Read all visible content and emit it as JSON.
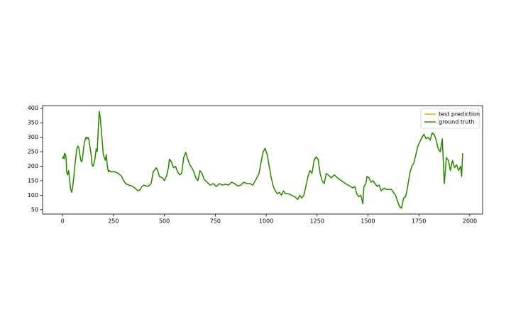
{
  "chart_data": {
    "type": "line",
    "x": [
      0,
      5,
      8,
      10,
      15,
      18,
      20,
      25,
      30,
      35,
      40,
      45,
      50,
      55,
      60,
      65,
      70,
      75,
      80,
      85,
      90,
      95,
      100,
      105,
      110,
      115,
      120,
      125,
      130,
      135,
      140,
      145,
      150,
      155,
      160,
      165,
      170,
      175,
      180,
      185,
      190,
      195,
      200,
      205,
      210,
      215,
      220,
      225,
      230,
      240,
      250,
      260,
      275,
      290,
      300,
      310,
      325,
      340,
      355,
      370,
      380,
      390,
      400,
      420,
      435,
      445,
      455,
      460,
      470,
      475,
      490,
      500,
      510,
      520,
      525,
      535,
      545,
      555,
      565,
      575,
      585,
      595,
      605,
      615,
      625,
      635,
      645,
      655,
      665,
      675,
      685,
      695,
      710,
      725,
      740,
      755,
      770,
      785,
      800,
      815,
      830,
      845,
      860,
      875,
      890,
      905,
      920,
      935,
      950,
      965,
      975,
      985,
      995,
      1005,
      1015,
      1025,
      1035,
      1045,
      1055,
      1065,
      1075,
      1085,
      1095,
      1110,
      1125,
      1140,
      1155,
      1165,
      1175,
      1185,
      1195,
      1205,
      1215,
      1225,
      1235,
      1245,
      1255,
      1265,
      1275,
      1285,
      1295,
      1305,
      1320,
      1335,
      1350,
      1370,
      1390,
      1410,
      1425,
      1435,
      1445,
      1455,
      1465,
      1475,
      1480,
      1490,
      1495,
      1505,
      1515,
      1525,
      1535,
      1545,
      1555,
      1565,
      1580,
      1590,
      1605,
      1615,
      1625,
      1635,
      1645,
      1655,
      1665,
      1675,
      1685,
      1695,
      1705,
      1715,
      1725,
      1735,
      1745,
      1755,
      1765,
      1775,
      1785,
      1795,
      1805,
      1815,
      1825,
      1835,
      1845,
      1855,
      1865,
      1875,
      1885,
      1895,
      1905,
      1915,
      1925,
      1935,
      1945,
      1955,
      1960,
      1965
    ],
    "series": [
      {
        "name": "test prediction",
        "color": "#b5b500",
        "values": [
          226,
          234,
          226,
          243,
          239,
          226,
          182,
          171,
          184,
          152,
          122,
          112,
          129,
          158,
          198,
          228,
          258,
          268,
          264,
          241,
          222,
          216,
          238,
          268,
          288,
          298,
          294,
          298,
          289,
          266,
          242,
          207,
          202,
          211,
          229,
          258,
          251,
          318,
          385,
          368,
          330,
          286,
          242,
          231,
          222,
          239,
          202,
          182,
          186,
          180,
          182,
          180,
          175,
          165,
          151,
          141,
          135,
          132,
          125,
          116,
          119,
          130,
          135,
          130,
          140,
          178,
          189,
          194,
          180,
          166,
          160,
          151,
          165,
          193,
          222,
          214,
          195,
          200,
          181,
          171,
          176,
          228,
          246,
          225,
          205,
          195,
          180,
          161,
          151,
          183,
          175,
          156,
          145,
          135,
          140,
          131,
          140,
          135,
          138,
          135,
          145,
          140,
          132,
          135,
          145,
          140,
          140,
          135,
          155,
          175,
          213,
          248,
          260,
          240,
          201,
          161,
          131,
          116,
          106,
          110,
          101,
          114,
          106,
          105,
          100,
          95,
          86,
          100,
          91,
          100,
          130,
          163,
          184,
          176,
          218,
          230,
          224,
          176,
          151,
          141,
          174,
          170,
          160,
          170,
          160,
          150,
          140,
          132,
          126,
          130,
          106,
          96,
          100,
          72,
          128,
          140,
          164,
          160,
          145,
          150,
          140,
          131,
          135,
          116,
          125,
          120,
          120,
          120,
          111,
          101,
          81,
          61,
          57,
          90,
          96,
          130,
          173,
          199,
          210,
          238,
          268,
          284,
          298,
          308,
          295,
          299,
          290,
          312,
          308,
          290,
          261,
          251,
          292,
          143,
          229,
          220,
          186,
          219,
          196,
          205,
          186,
          199,
          167,
          243
        ]
      },
      {
        "name": "ground truth",
        "color": "#1f8a00",
        "values": [
          225,
          235,
          225,
          245,
          240,
          225,
          180,
          170,
          185,
          150,
          120,
          110,
          130,
          160,
          200,
          230,
          260,
          270,
          265,
          240,
          220,
          215,
          240,
          270,
          290,
          300,
          295,
          300,
          290,
          265,
          240,
          205,
          200,
          210,
          230,
          260,
          250,
          320,
          390,
          370,
          330,
          285,
          240,
          230,
          220,
          240,
          200,
          180,
          185,
          180,
          182,
          180,
          175,
          165,
          150,
          140,
          135,
          132,
          125,
          115,
          118,
          130,
          135,
          130,
          140,
          180,
          190,
          195,
          180,
          165,
          160,
          150,
          165,
          195,
          225,
          215,
          195,
          200,
          180,
          170,
          175,
          230,
          248,
          225,
          205,
          195,
          180,
          160,
          150,
          185,
          175,
          155,
          145,
          135,
          140,
          130,
          140,
          135,
          138,
          135,
          145,
          140,
          132,
          135,
          145,
          140,
          140,
          135,
          155,
          175,
          215,
          250,
          262,
          240,
          200,
          160,
          130,
          115,
          105,
          110,
          100,
          115,
          105,
          105,
          100,
          95,
          85,
          100,
          90,
          100,
          130,
          165,
          185,
          175,
          220,
          232,
          225,
          175,
          150,
          140,
          175,
          170,
          160,
          170,
          160,
          150,
          140,
          132,
          125,
          130,
          105,
          95,
          100,
          70,
          130,
          140,
          165,
          160,
          145,
          150,
          140,
          130,
          135,
          115,
          125,
          120,
          120,
          120,
          110,
          100,
          80,
          60,
          55,
          90,
          95,
          130,
          175,
          200,
          210,
          240,
          270,
          285,
          300,
          310,
          295,
          300,
          290,
          315,
          310,
          290,
          260,
          250,
          295,
          140,
          230,
          220,
          185,
          220,
          195,
          205,
          185,
          200,
          165,
          245
        ]
      }
    ],
    "xlim": [
      -98,
      2063
    ],
    "ylim": [
      35,
      409
    ],
    "xticks": [
      0,
      250,
      500,
      750,
      1000,
      1250,
      1500,
      1750,
      2000
    ],
    "yticks": [
      50,
      100,
      150,
      200,
      250,
      300,
      350,
      400
    ],
    "legend": "upper right"
  }
}
